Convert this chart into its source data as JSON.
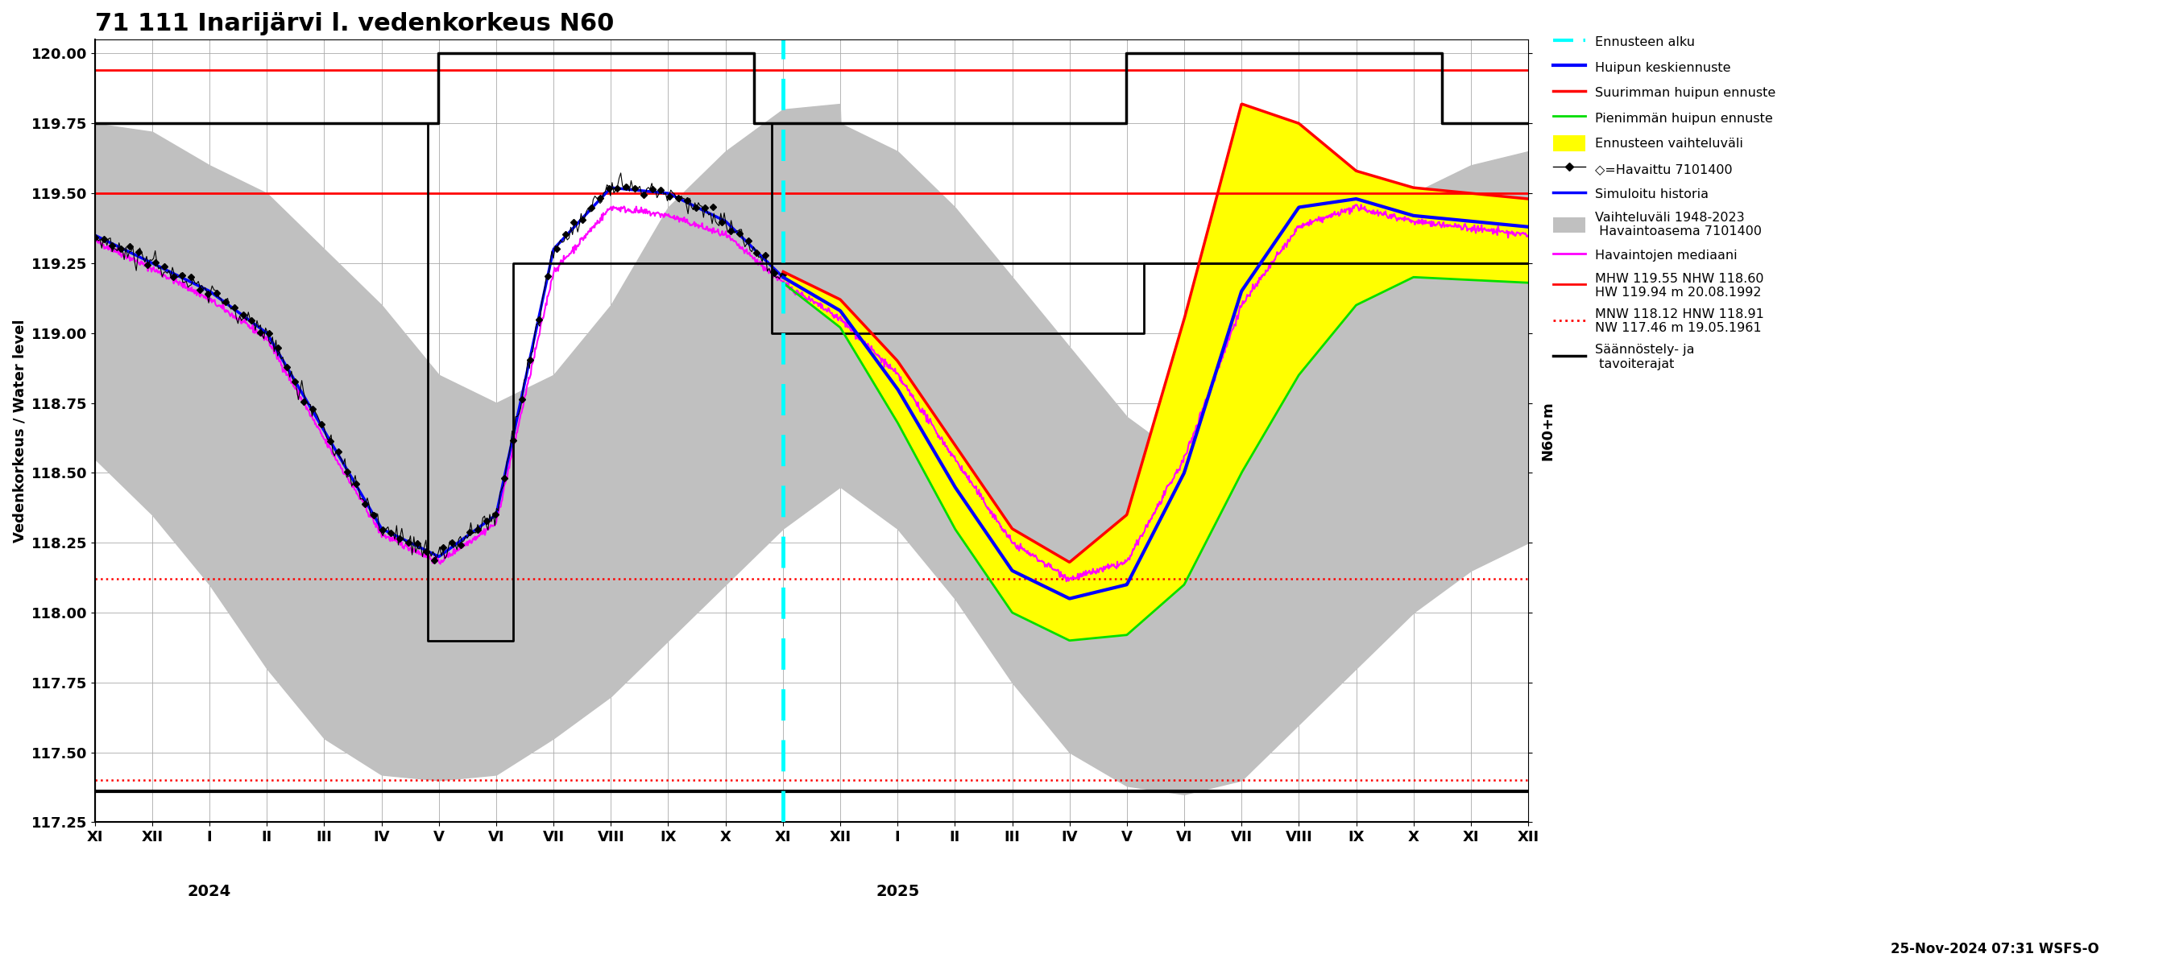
{
  "title": "71 111 Inarijärvi l. vedenkorkeus N60",
  "ylabel_left": "Vedenkorkeus / Water level",
  "ylabel_right": "N60+m",
  "footer": "25-Nov-2024 07:31 WSFS-O",
  "ylim": [
    117.25,
    120.05
  ],
  "yticks": [
    117.25,
    117.5,
    117.75,
    118.0,
    118.25,
    118.5,
    118.75,
    119.0,
    119.25,
    119.5,
    119.75,
    120.0
  ],
  "solid_red_lines": [
    119.94,
    119.5
  ],
  "dotted_red_lines": [
    118.12,
    117.4
  ],
  "HW_line": 119.94,
  "NHW_line": 118.6,
  "MHW_line": 119.55,
  "MNW_line": 118.12,
  "NW_line": 117.46,
  "background_color": "#ffffff",
  "gray_band_color": "#c0c0c0",
  "yellow_band_color": "#ffff00",
  "reg_upper_winter": 119.75,
  "reg_upper_summer": 120.0,
  "reg_lower": 117.36,
  "forecast_month_idx": 13,
  "legend_labels": [
    "Ennusteen alku",
    "Huipun keskiennuste",
    "Suurimman huipun ennuste",
    "Pienimmän huipun ennuste",
    "Ennusteen vaihteluväli",
    "◇=Havaittu 7101400",
    "Simuloitu historia",
    "Vaihteluväli 1948-2023\n Havaintoasema 7101400",
    "Havaintojen mediaani",
    "MHW 119.55 NHW 118.60\nHW 119.94 m 20.08.1992",
    "MNW 118.12 HNW 118.91\nNW 117.46 m 19.05.1961",
    "Säännöstely- ja\n tavoiterajat"
  ]
}
